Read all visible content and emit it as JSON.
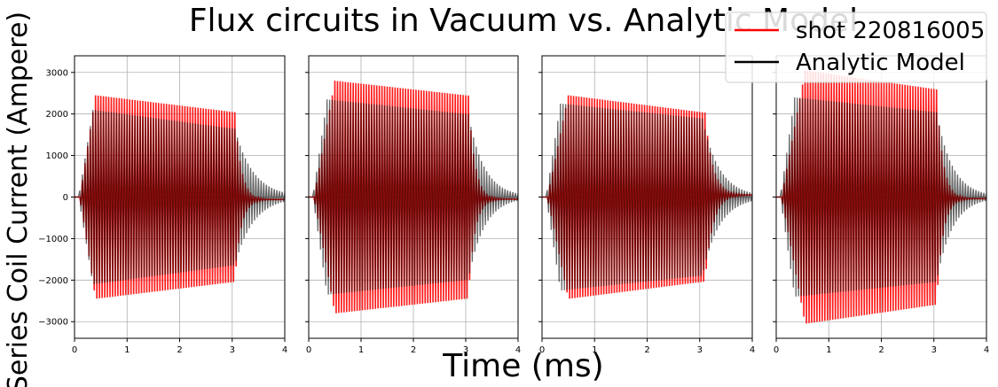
{
  "figure": {
    "title": "Flux circuits in Vacuum vs. Analytic Model",
    "xlabel": "Time (ms)",
    "ylabel": "Series Coil Current (Ampere)"
  },
  "legend": {
    "placement": "top-right",
    "entries": [
      {
        "label": "shot 220816005",
        "color": "#ff0000"
      },
      {
        "label": "Analytic Model",
        "color": "#000000"
      }
    ]
  },
  "chart_data": [
    {
      "type": "line",
      "xlim": [
        0,
        4
      ],
      "ylim": [
        -3400,
        3400
      ],
      "xticks": [
        0,
        1,
        2,
        3,
        4
      ],
      "yticks": [
        -3000,
        -2000,
        -1000,
        0,
        1000,
        2000,
        3000
      ],
      "grid": true,
      "series": [
        {
          "name": "shot 220816005",
          "color": "#ff0000",
          "envelope": {
            "t_on": 0.1,
            "t_peak": 0.4,
            "amp_peak": 2450,
            "amp_at_3ms": 2050,
            "t_off": 3.05,
            "decay_ms": 0.12
          },
          "tail_offset": -60
        },
        {
          "name": "Analytic Model",
          "color": "#000000",
          "envelope": {
            "t_on": 0.08,
            "t_peak": 0.35,
            "amp_peak": 2100,
            "amp_at_3ms": 1650,
            "t_off": 3.05,
            "decay_ms": 0.35
          },
          "tail_offset": 0
        }
      ]
    },
    {
      "type": "line",
      "xlim": [
        0,
        4
      ],
      "ylim": [
        -3400,
        3400
      ],
      "xticks": [
        0,
        1,
        2,
        3,
        4
      ],
      "yticks": [
        -3000,
        -2000,
        -1000,
        0,
        1000,
        2000,
        3000
      ],
      "grid": true,
      "series": [
        {
          "name": "shot 220816005",
          "color": "#ff0000",
          "envelope": {
            "t_on": 0.1,
            "t_peak": 0.5,
            "amp_peak": 2800,
            "amp_at_3ms": 2450,
            "t_off": 3.05,
            "decay_ms": 0.12
          },
          "tail_offset": -50
        },
        {
          "name": "Analytic Model",
          "color": "#000000",
          "envelope": {
            "t_on": 0.08,
            "t_peak": 0.35,
            "amp_peak": 2350,
            "amp_at_3ms": 2000,
            "t_off": 3.05,
            "decay_ms": 0.3
          },
          "tail_offset": 0
        }
      ]
    },
    {
      "type": "line",
      "xlim": [
        0,
        4
      ],
      "ylim": [
        -3400,
        3400
      ],
      "xticks": [
        0,
        1,
        2,
        3,
        4
      ],
      "yticks": [
        -3000,
        -2000,
        -1000,
        0,
        1000,
        2000,
        3000
      ],
      "grid": true,
      "series": [
        {
          "name": "shot 220816005",
          "color": "#ff0000",
          "envelope": {
            "t_on": 0.1,
            "t_peak": 0.5,
            "amp_peak": 2450,
            "amp_at_3ms": 2050,
            "t_off": 3.1,
            "decay_ms": 0.15
          },
          "tail_offset": 50
        },
        {
          "name": "Analytic Model",
          "color": "#000000",
          "envelope": {
            "t_on": 0.08,
            "t_peak": 0.35,
            "amp_peak": 2250,
            "amp_at_3ms": 1900,
            "t_off": 3.05,
            "decay_ms": 0.32
          },
          "tail_offset": 0
        }
      ]
    },
    {
      "type": "line",
      "xlim": [
        0,
        4
      ],
      "ylim": [
        -3400,
        3400
      ],
      "xticks": [
        0,
        1,
        2,
        3,
        4
      ],
      "yticks": [
        -3000,
        -2000,
        -1000,
        0,
        1000,
        2000,
        3000
      ],
      "grid": true,
      "series": [
        {
          "name": "shot 220816005",
          "color": "#ff0000",
          "envelope": {
            "t_on": 0.1,
            "t_peak": 0.55,
            "amp_peak": 3050,
            "amp_at_3ms": 2600,
            "t_off": 3.05,
            "decay_ms": 0.12
          },
          "tail_offset": -40
        },
        {
          "name": "Analytic Model",
          "color": "#000000",
          "envelope": {
            "t_on": 0.08,
            "t_peak": 0.35,
            "amp_peak": 2400,
            "amp_at_3ms": 2050,
            "t_off": 3.05,
            "decay_ms": 0.3
          },
          "tail_offset": 0
        }
      ]
    }
  ]
}
